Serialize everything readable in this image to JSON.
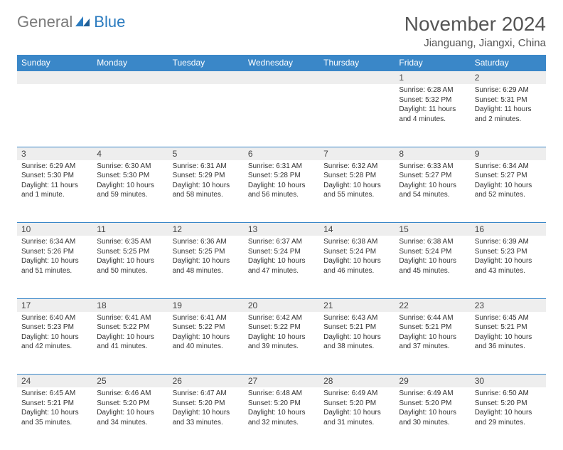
{
  "logo": {
    "word1": "General",
    "word2": "Blue"
  },
  "title": "November 2024",
  "location": "Jianguang, Jiangxi, China",
  "colors": {
    "header_bg": "#3a87c8",
    "header_text": "#ffffff",
    "daynum_bg": "#eeeeee",
    "rule": "#3a87c8",
    "text": "#333333",
    "title_text": "#555555",
    "logo_gray": "#7a7a7a",
    "logo_blue": "#2b7bbf"
  },
  "day_headers": [
    "Sunday",
    "Monday",
    "Tuesday",
    "Wednesday",
    "Thursday",
    "Friday",
    "Saturday"
  ],
  "weeks": [
    [
      null,
      null,
      null,
      null,
      null,
      {
        "n": "1",
        "sr": "Sunrise: 6:28 AM",
        "ss": "Sunset: 5:32 PM",
        "dl": "Daylight: 11 hours and 4 minutes."
      },
      {
        "n": "2",
        "sr": "Sunrise: 6:29 AM",
        "ss": "Sunset: 5:31 PM",
        "dl": "Daylight: 11 hours and 2 minutes."
      }
    ],
    [
      {
        "n": "3",
        "sr": "Sunrise: 6:29 AM",
        "ss": "Sunset: 5:30 PM",
        "dl": "Daylight: 11 hours and 1 minute."
      },
      {
        "n": "4",
        "sr": "Sunrise: 6:30 AM",
        "ss": "Sunset: 5:30 PM",
        "dl": "Daylight: 10 hours and 59 minutes."
      },
      {
        "n": "5",
        "sr": "Sunrise: 6:31 AM",
        "ss": "Sunset: 5:29 PM",
        "dl": "Daylight: 10 hours and 58 minutes."
      },
      {
        "n": "6",
        "sr": "Sunrise: 6:31 AM",
        "ss": "Sunset: 5:28 PM",
        "dl": "Daylight: 10 hours and 56 minutes."
      },
      {
        "n": "7",
        "sr": "Sunrise: 6:32 AM",
        "ss": "Sunset: 5:28 PM",
        "dl": "Daylight: 10 hours and 55 minutes."
      },
      {
        "n": "8",
        "sr": "Sunrise: 6:33 AM",
        "ss": "Sunset: 5:27 PM",
        "dl": "Daylight: 10 hours and 54 minutes."
      },
      {
        "n": "9",
        "sr": "Sunrise: 6:34 AM",
        "ss": "Sunset: 5:27 PM",
        "dl": "Daylight: 10 hours and 52 minutes."
      }
    ],
    [
      {
        "n": "10",
        "sr": "Sunrise: 6:34 AM",
        "ss": "Sunset: 5:26 PM",
        "dl": "Daylight: 10 hours and 51 minutes."
      },
      {
        "n": "11",
        "sr": "Sunrise: 6:35 AM",
        "ss": "Sunset: 5:25 PM",
        "dl": "Daylight: 10 hours and 50 minutes."
      },
      {
        "n": "12",
        "sr": "Sunrise: 6:36 AM",
        "ss": "Sunset: 5:25 PM",
        "dl": "Daylight: 10 hours and 48 minutes."
      },
      {
        "n": "13",
        "sr": "Sunrise: 6:37 AM",
        "ss": "Sunset: 5:24 PM",
        "dl": "Daylight: 10 hours and 47 minutes."
      },
      {
        "n": "14",
        "sr": "Sunrise: 6:38 AM",
        "ss": "Sunset: 5:24 PM",
        "dl": "Daylight: 10 hours and 46 minutes."
      },
      {
        "n": "15",
        "sr": "Sunrise: 6:38 AM",
        "ss": "Sunset: 5:24 PM",
        "dl": "Daylight: 10 hours and 45 minutes."
      },
      {
        "n": "16",
        "sr": "Sunrise: 6:39 AM",
        "ss": "Sunset: 5:23 PM",
        "dl": "Daylight: 10 hours and 43 minutes."
      }
    ],
    [
      {
        "n": "17",
        "sr": "Sunrise: 6:40 AM",
        "ss": "Sunset: 5:23 PM",
        "dl": "Daylight: 10 hours and 42 minutes."
      },
      {
        "n": "18",
        "sr": "Sunrise: 6:41 AM",
        "ss": "Sunset: 5:22 PM",
        "dl": "Daylight: 10 hours and 41 minutes."
      },
      {
        "n": "19",
        "sr": "Sunrise: 6:41 AM",
        "ss": "Sunset: 5:22 PM",
        "dl": "Daylight: 10 hours and 40 minutes."
      },
      {
        "n": "20",
        "sr": "Sunrise: 6:42 AM",
        "ss": "Sunset: 5:22 PM",
        "dl": "Daylight: 10 hours and 39 minutes."
      },
      {
        "n": "21",
        "sr": "Sunrise: 6:43 AM",
        "ss": "Sunset: 5:21 PM",
        "dl": "Daylight: 10 hours and 38 minutes."
      },
      {
        "n": "22",
        "sr": "Sunrise: 6:44 AM",
        "ss": "Sunset: 5:21 PM",
        "dl": "Daylight: 10 hours and 37 minutes."
      },
      {
        "n": "23",
        "sr": "Sunrise: 6:45 AM",
        "ss": "Sunset: 5:21 PM",
        "dl": "Daylight: 10 hours and 36 minutes."
      }
    ],
    [
      {
        "n": "24",
        "sr": "Sunrise: 6:45 AM",
        "ss": "Sunset: 5:21 PM",
        "dl": "Daylight: 10 hours and 35 minutes."
      },
      {
        "n": "25",
        "sr": "Sunrise: 6:46 AM",
        "ss": "Sunset: 5:20 PM",
        "dl": "Daylight: 10 hours and 34 minutes."
      },
      {
        "n": "26",
        "sr": "Sunrise: 6:47 AM",
        "ss": "Sunset: 5:20 PM",
        "dl": "Daylight: 10 hours and 33 minutes."
      },
      {
        "n": "27",
        "sr": "Sunrise: 6:48 AM",
        "ss": "Sunset: 5:20 PM",
        "dl": "Daylight: 10 hours and 32 minutes."
      },
      {
        "n": "28",
        "sr": "Sunrise: 6:49 AM",
        "ss": "Sunset: 5:20 PM",
        "dl": "Daylight: 10 hours and 31 minutes."
      },
      {
        "n": "29",
        "sr": "Sunrise: 6:49 AM",
        "ss": "Sunset: 5:20 PM",
        "dl": "Daylight: 10 hours and 30 minutes."
      },
      {
        "n": "30",
        "sr": "Sunrise: 6:50 AM",
        "ss": "Sunset: 5:20 PM",
        "dl": "Daylight: 10 hours and 29 minutes."
      }
    ]
  ]
}
